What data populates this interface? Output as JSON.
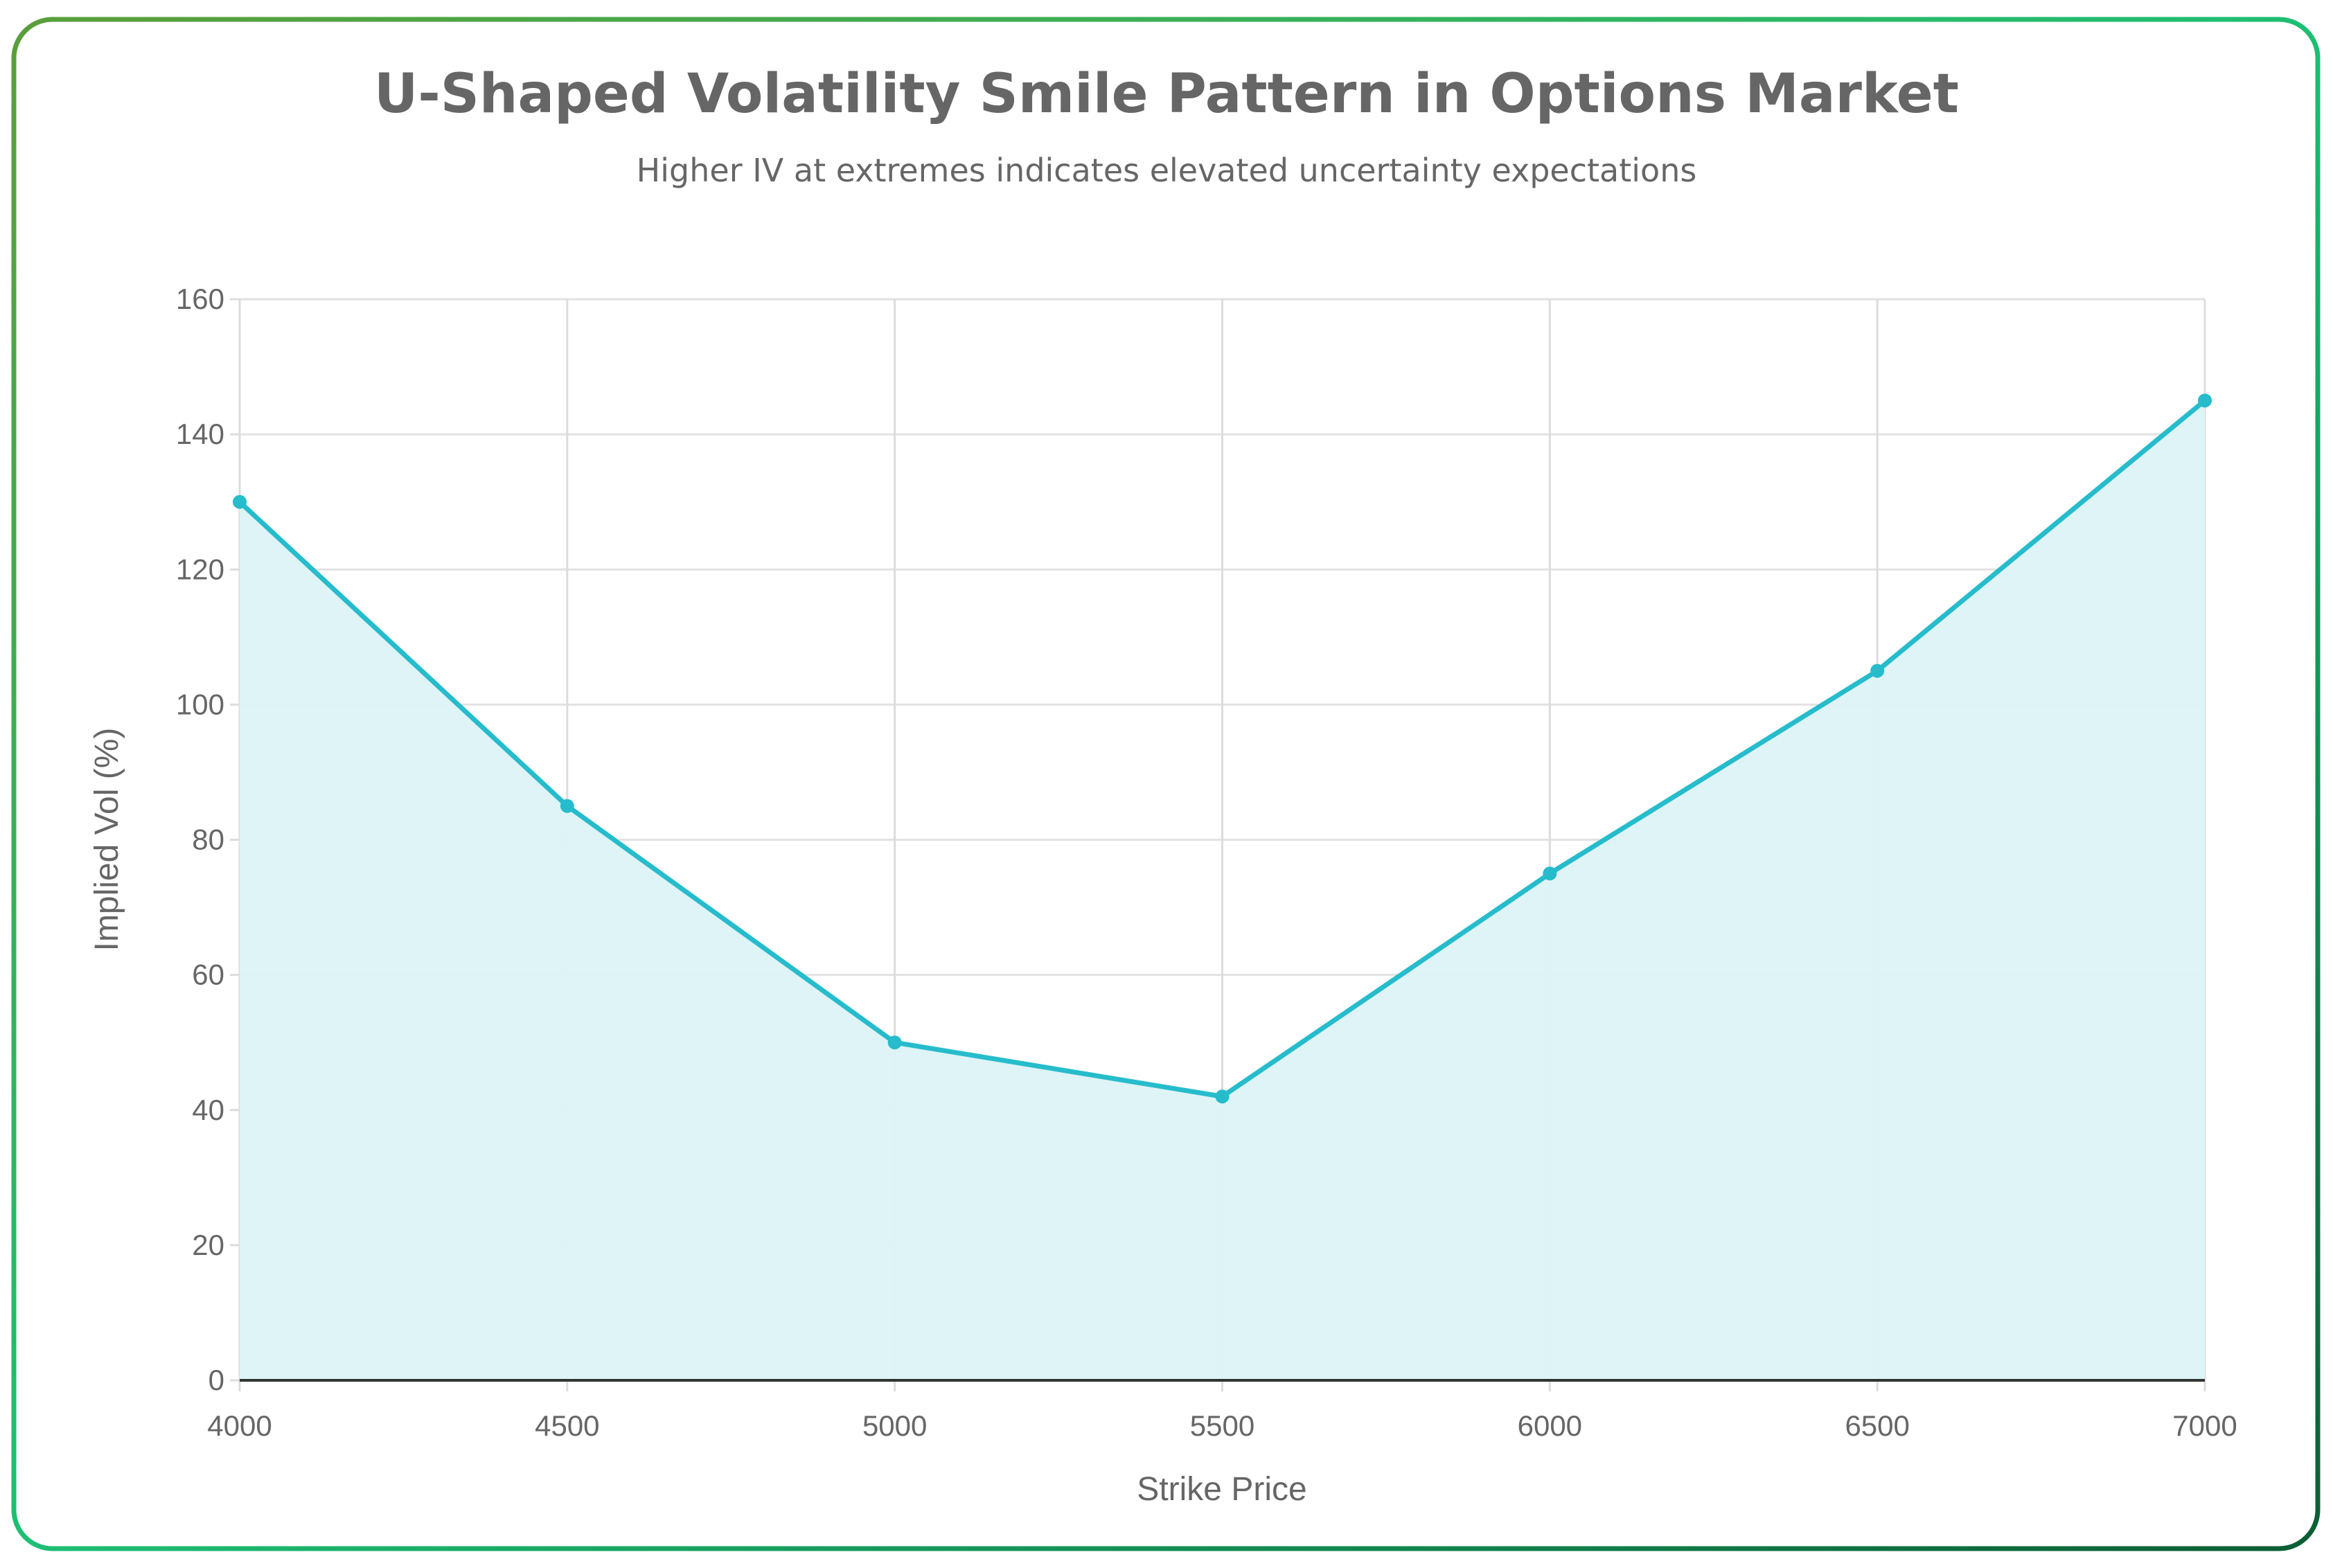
{
  "chart_data": {
    "type": "area",
    "title": "U-Shaped Volatility Smile Pattern in Options Market",
    "subtitle": "Higher IV at extremes indicates elevated uncertainty expectations",
    "xlabel": "Strike Price",
    "ylabel": "Implied Vol (%)",
    "x": [
      4000,
      4500,
      5000,
      5500,
      6000,
      6500,
      7000
    ],
    "values": [
      130,
      85,
      50,
      42,
      75,
      105,
      145
    ],
    "xlim": [
      4000,
      7000
    ],
    "ylim": [
      0,
      160
    ],
    "x_ticks": [
      "4000",
      "4500",
      "5000",
      "5500",
      "6000",
      "6500",
      "7000"
    ],
    "y_ticks": [
      "0",
      "20",
      "40",
      "60",
      "80",
      "100",
      "120",
      "140",
      "160"
    ],
    "grid": true,
    "colors": {
      "line": "#26bccc",
      "fill": "#dcf3f7",
      "border_start": "#5a9e3a",
      "border_mid": "#1dbf73",
      "border_end": "#0b5e35"
    }
  }
}
